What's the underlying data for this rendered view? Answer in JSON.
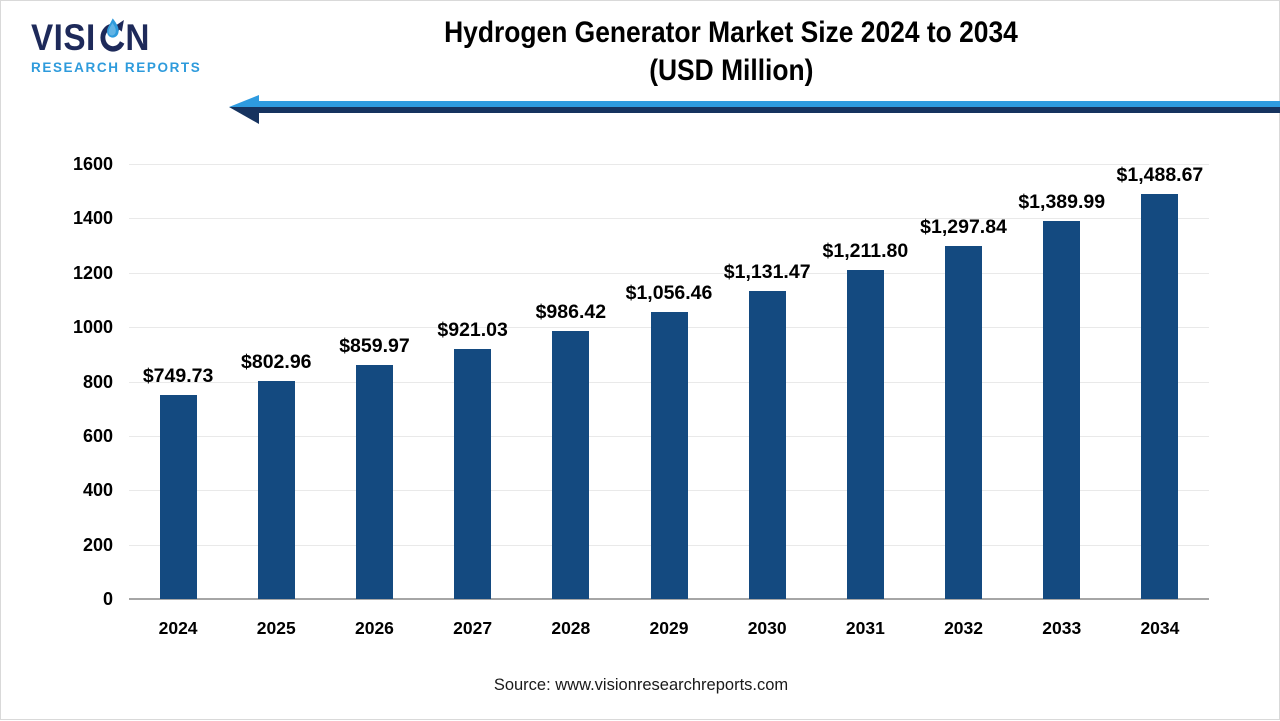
{
  "header": {
    "logo": {
      "brand_left": "VISI",
      "brand_right": "N",
      "subtitle": "RESEARCH REPORTS",
      "brand_color": "#1e2a5a",
      "subtitle_color": "#2e9bdc"
    },
    "title_line1": "Hydrogen Generator Market Size 2024 to 2034",
    "title_line2": "(USD Million)",
    "arrow_colors": {
      "light": "#2e9be0",
      "dark": "#16335f"
    }
  },
  "chart_data": {
    "type": "bar",
    "title": "Hydrogen Generator Market Size 2024 to 2034 (USD Million)",
    "xlabel": "",
    "ylabel": "",
    "categories": [
      "2024",
      "2025",
      "2026",
      "2027",
      "2028",
      "2029",
      "2030",
      "2031",
      "2032",
      "2033",
      "2034"
    ],
    "values": [
      749.73,
      802.96,
      859.97,
      921.03,
      986.42,
      1056.46,
      1131.47,
      1211.8,
      1297.84,
      1389.99,
      1488.67
    ],
    "value_labels": [
      "$749.73",
      "$802.96",
      "$859.97",
      "$921.03",
      "$986.42",
      "$1,056.46",
      "$1,131.47",
      "$1,211.80",
      "$1,297.84",
      "$1,389.99",
      "$1,488.67"
    ],
    "ylim": [
      0,
      1600
    ],
    "yticks": [
      0,
      200,
      400,
      600,
      800,
      1000,
      1200,
      1400,
      1600
    ],
    "grid": true,
    "legend": "none",
    "bar_color": "#144a80",
    "gridline_color": "#e9e9e9",
    "axis_line_color": "#a6a6a6"
  },
  "footer": {
    "source": "Source: www.visionresearchreports.com"
  }
}
